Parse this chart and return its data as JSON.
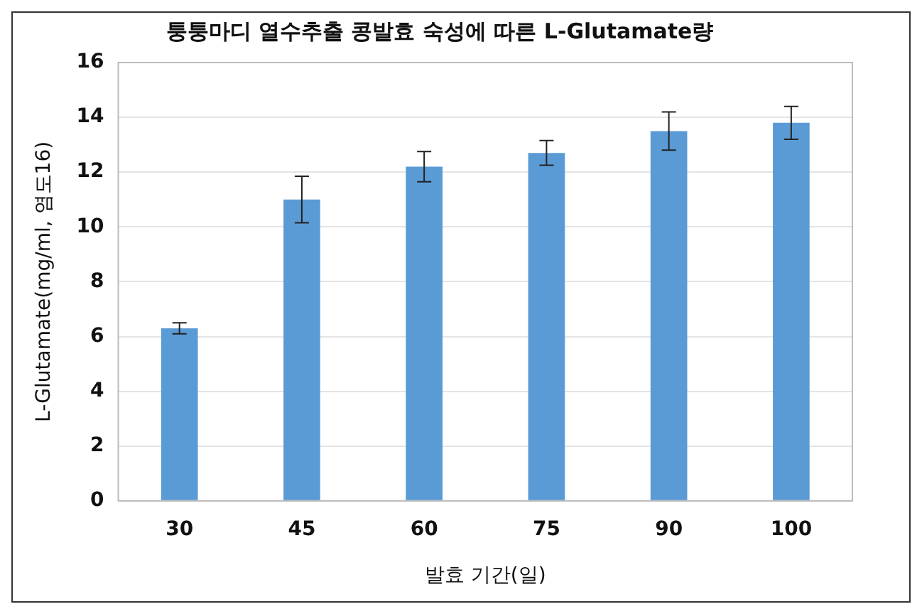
{
  "chart_data": {
    "type": "bar",
    "title": "퉁퉁마디 열수추출 콩발효 숙성에 따른 L-Glutamate량",
    "xlabel": "발효 기간(일)",
    "ylabel": "L-Glutamate(mg/ml, 염도16)",
    "categories": [
      "30",
      "45",
      "60",
      "75",
      "90",
      "100"
    ],
    "values": [
      6.3,
      11.0,
      12.2,
      12.7,
      13.5,
      13.8
    ],
    "errors": [
      0.2,
      0.85,
      0.55,
      0.45,
      0.7,
      0.6
    ],
    "color": "#5b9bd5",
    "ylim": [
      0,
      16
    ],
    "yticks": [
      0,
      2,
      4,
      6,
      8,
      10,
      12,
      14,
      16
    ],
    "grid": "y",
    "legend": false
  }
}
